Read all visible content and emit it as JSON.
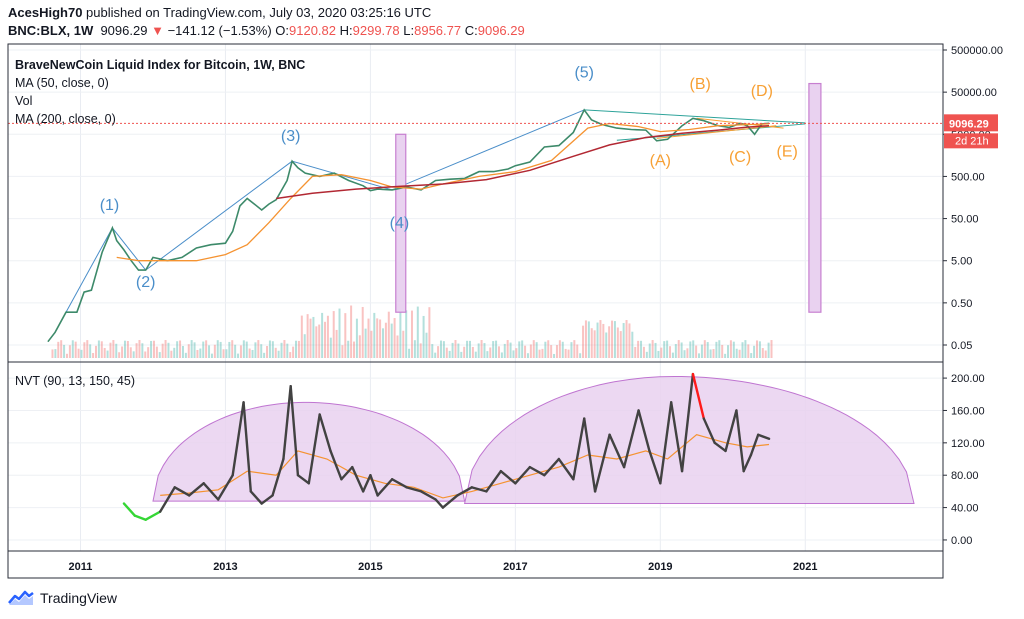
{
  "header": {
    "author": "AcesHigh70",
    "published_text": "published on TradingView.com, July 03, 2020 03:25:16 UTC",
    "symbol": "BNC:BLX, 1W",
    "price": "9096.29",
    "change_arrow": "▼",
    "change": "−141.12 (−1.53%)",
    "o_label": "O:",
    "o_value": "9120.82",
    "h_label": "H:",
    "h_value": "9299.78",
    "l_label": "L:",
    "l_value": "8956.77",
    "c_label": "C:",
    "c_value": "9096.29"
  },
  "legend": {
    "title": "BraveNewCoin Liquid Index for Bitcoin, 1W, BNC",
    "ma50": "MA (50, close, 0)",
    "vol": "Vol",
    "ma200": "MA (200, close, 0)",
    "nvt": "NVT (90, 13, 150, 45)"
  },
  "footer": {
    "brand": "TradingView"
  },
  "colors": {
    "price_up": "#26a69a",
    "price_down": "#ef5350",
    "ma50": "#f59331",
    "ma200": "#b22833",
    "wave": "#4a8ec9",
    "abc": "#f7a034",
    "box": "#c77fd0",
    "nvt_line": "#424242",
    "nvt_arc_fill": "#e9d2f0",
    "nvt_arc": "#b55dc9"
  },
  "chart_data": [
    {
      "type": "line",
      "title": "BraveNewCoin Liquid Index for Bitcoin, 1W, BNC",
      "scale": "log",
      "x_ticks": [
        "2011",
        "2013",
        "2015",
        "2017",
        "2019",
        "2021"
      ],
      "y_ticks": [
        "500000.00",
        "50000.00",
        "5000.00",
        "500.00",
        "50.00",
        "5.00",
        "0.50",
        "0.05"
      ],
      "y_tick_values": [
        500000,
        50000,
        5000,
        500,
        50,
        5,
        0.5,
        0.05
      ],
      "last_price_label": "9096.29",
      "countdown_label": "2d 21h",
      "last_price": 9096.29,
      "price_series": {
        "x": [
          2010.55,
          2010.65,
          2010.8,
          2010.95,
          2011.05,
          2011.15,
          2011.3,
          2011.44,
          2011.5,
          2011.6,
          2011.7,
          2011.8,
          2011.9,
          2012.0,
          2012.2,
          2012.4,
          2012.6,
          2012.8,
          2013.0,
          2013.1,
          2013.2,
          2013.3,
          2013.4,
          2013.5,
          2013.6,
          2013.7,
          2013.85,
          2013.92,
          2014.0,
          2014.1,
          2014.3,
          2014.5,
          2014.7,
          2014.9,
          2015.0,
          2015.1,
          2015.3,
          2015.5,
          2015.7,
          2015.9,
          2016.1,
          2016.3,
          2016.5,
          2016.7,
          2016.9,
          2017.0,
          2017.2,
          2017.4,
          2017.6,
          2017.8,
          2017.95,
          2018.05,
          2018.2,
          2018.4,
          2018.6,
          2018.8,
          2018.95,
          2019.1,
          2019.3,
          2019.45,
          2019.6,
          2019.8,
          2019.95,
          2020.1,
          2020.2,
          2020.3,
          2020.4,
          2020.5
        ],
        "y": [
          0.06,
          0.1,
          0.3,
          0.3,
          0.9,
          1,
          8,
          30,
          15,
          9,
          5,
          3,
          3,
          6,
          5,
          6,
          10,
          12,
          13,
          25,
          100,
          150,
          110,
          80,
          110,
          140,
          400,
          1150,
          800,
          600,
          500,
          600,
          400,
          300,
          230,
          250,
          240,
          280,
          240,
          400,
          430,
          450,
          650,
          650,
          750,
          900,
          1100,
          2500,
          2700,
          5500,
          19000,
          11000,
          8500,
          7000,
          6500,
          6300,
          3500,
          3800,
          8000,
          12000,
          10500,
          8000,
          7300,
          9000,
          8000,
          5000,
          8800,
          9096
        ]
      },
      "ma50": {
        "x": [
          2011.5,
          2011.8,
          2012.2,
          2012.6,
          2013.0,
          2013.3,
          2013.6,
          2013.9,
          2014.2,
          2014.6,
          2015.0,
          2015.3,
          2015.7,
          2016.0,
          2016.5,
          2017.0,
          2017.5,
          2018.0,
          2018.3,
          2018.7,
          2019.0,
          2019.4,
          2019.8,
          2020.2,
          2020.5
        ],
        "y": [
          6,
          5,
          5,
          5,
          7,
          12,
          40,
          150,
          500,
          550,
          400,
          280,
          250,
          330,
          500,
          650,
          1200,
          7000,
          9000,
          7600,
          5800,
          6500,
          8000,
          8500,
          8800
        ]
      },
      "ma200": {
        "x": [
          2013.7,
          2014.2,
          2014.8,
          2015.4,
          2016.0,
          2016.6,
          2017.2,
          2017.8,
          2018.3,
          2018.8,
          2019.3,
          2019.8,
          2020.2,
          2020.5
        ],
        "y": [
          150,
          200,
          250,
          290,
          330,
          420,
          700,
          1500,
          2800,
          4200,
          5300,
          6300,
          7400,
          8000
        ]
      },
      "elliott_wave_labels": [
        {
          "label": "(1)",
          "x": 2011.4
        },
        {
          "label": "(2)",
          "x": 2011.9
        },
        {
          "label": "(3)",
          "x": 2013.9
        },
        {
          "label": "(4)",
          "x": 2015.4
        },
        {
          "label": "(5)",
          "x": 2017.95
        }
      ],
      "corrective_wave_labels": [
        {
          "label": "(A)",
          "x": 2019.0
        },
        {
          "label": "(B)",
          "x": 2019.55
        },
        {
          "label": "(C)",
          "x": 2020.1
        },
        {
          "label": "(D)",
          "x": 2020.4
        },
        {
          "label": "(E)",
          "x": 2020.75
        }
      ]
    },
    {
      "type": "line",
      "title": "NVT (90, 13, 150, 45)",
      "y_ticks": [
        "200.00",
        "160.00",
        "120.00",
        "80.00",
        "40.00",
        "0.00"
      ],
      "y_tick_values": [
        200,
        160,
        120,
        80,
        40,
        0
      ],
      "ylim": [
        -5,
        210
      ],
      "nvt_series": {
        "x": [
          2011.6,
          2011.75,
          2011.9,
          2012.1,
          2012.3,
          2012.5,
          2012.7,
          2012.9,
          2013.1,
          2013.25,
          2013.35,
          2013.5,
          2013.65,
          2013.8,
          2013.9,
          2014.0,
          2014.15,
          2014.3,
          2014.45,
          2014.6,
          2014.75,
          2014.9,
          2015.0,
          2015.1,
          2015.3,
          2015.5,
          2015.7,
          2015.9,
          2016.0,
          2016.2,
          2016.4,
          2016.6,
          2016.8,
          2017.0,
          2017.2,
          2017.4,
          2017.6,
          2017.8,
          2017.95,
          2018.1,
          2018.3,
          2018.5,
          2018.7,
          2018.85,
          2019.0,
          2019.15,
          2019.3,
          2019.45,
          2019.6,
          2019.75,
          2019.9,
          2020.05,
          2020.15,
          2020.25,
          2020.35,
          2020.5
        ],
        "y": [
          45,
          30,
          25,
          35,
          65,
          55,
          70,
          50,
          80,
          170,
          60,
          45,
          55,
          100,
          190,
          80,
          70,
          155,
          110,
          75,
          90,
          60,
          80,
          55,
          75,
          65,
          60,
          50,
          40,
          55,
          65,
          60,
          85,
          70,
          90,
          80,
          100,
          75,
          150,
          60,
          130,
          90,
          160,
          110,
          70,
          170,
          85,
          205,
          150,
          120,
          110,
          160,
          85,
          105,
          130,
          125
        ]
      },
      "nvt_signal_ma": {
        "x": [
          2012.1,
          2012.5,
          2012.9,
          2013.3,
          2013.7,
          2014.0,
          2014.4,
          2014.8,
          2015.2,
          2015.6,
          2016.0,
          2016.4,
          2016.8,
          2017.2,
          2017.6,
          2018.0,
          2018.4,
          2018.8,
          2019.1,
          2019.5,
          2019.9,
          2020.2,
          2020.5
        ],
        "y": [
          55,
          58,
          62,
          85,
          80,
          110,
          100,
          80,
          70,
          65,
          52,
          60,
          70,
          80,
          90,
          105,
          100,
          110,
          100,
          130,
          120,
          115,
          118
        ]
      },
      "nvt_arc_1": {
        "x_start": 2012.0,
        "x_peak": 2014.1,
        "x_end": 2016.3,
        "peak": 170,
        "base": 48
      },
      "nvt_arc_2": {
        "x_start": 2016.3,
        "x_peak": 2019.2,
        "x_end": 2022.5,
        "peak": 202,
        "base": 45
      }
    }
  ]
}
